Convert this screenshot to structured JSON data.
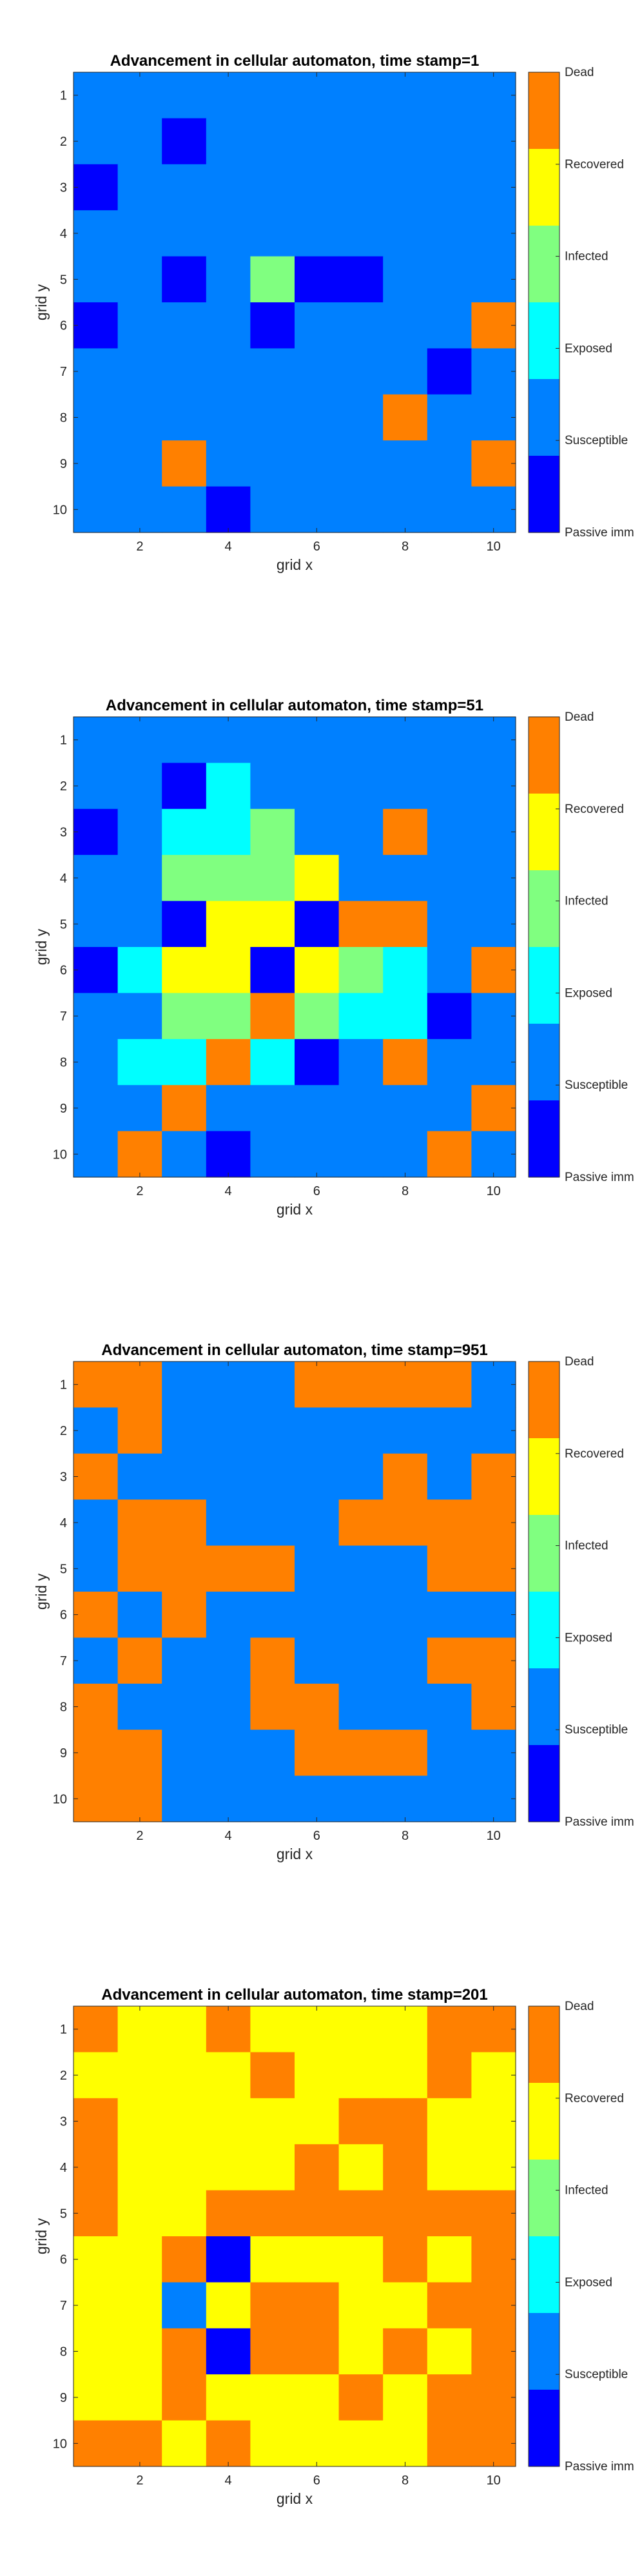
{
  "figure": {
    "background": "#ffffff"
  },
  "colormap": [
    {
      "state": "Passive immune",
      "color": "#0000FF"
    },
    {
      "state": "Susceptible",
      "color": "#0080FF"
    },
    {
      "state": "Exposed",
      "color": "#00FFFF"
    },
    {
      "state": "Infected",
      "color": "#80FF80"
    },
    {
      "state": "Recovered",
      "color": "#FFFF00"
    },
    {
      "state": "Dead",
      "color": "#FF8000"
    }
  ],
  "colorbar_labels": [
    "Passive imm",
    "Susceptible",
    "Exposed",
    "Infected",
    "Recovered",
    "Dead"
  ],
  "chart_data": [
    {
      "type": "heatmap",
      "title": "Advancement in cellular automaton, time stamp=1",
      "xlabel": "grid x",
      "ylabel": "grid y",
      "xticks": [
        2,
        4,
        6,
        8,
        10
      ],
      "yticks": [
        1,
        2,
        3,
        4,
        5,
        6,
        7,
        8,
        9,
        10
      ],
      "state_codes": {
        "0": "Passive immune",
        "1": "Susceptible",
        "2": "Exposed",
        "3": "Infected",
        "4": "Recovered",
        "5": "Dead"
      },
      "grid": [
        [
          1,
          1,
          1,
          1,
          1,
          1,
          1,
          1,
          1,
          1
        ],
        [
          1,
          1,
          0,
          1,
          1,
          1,
          1,
          1,
          1,
          1
        ],
        [
          0,
          1,
          1,
          1,
          1,
          1,
          1,
          1,
          1,
          1
        ],
        [
          1,
          1,
          1,
          1,
          1,
          1,
          1,
          1,
          1,
          1
        ],
        [
          1,
          1,
          0,
          1,
          3,
          0,
          0,
          1,
          1,
          1
        ],
        [
          0,
          1,
          1,
          1,
          0,
          1,
          1,
          1,
          1,
          5
        ],
        [
          1,
          1,
          1,
          1,
          1,
          1,
          1,
          1,
          0,
          1
        ],
        [
          1,
          1,
          1,
          1,
          1,
          1,
          1,
          5,
          1,
          1
        ],
        [
          1,
          1,
          5,
          1,
          1,
          1,
          1,
          1,
          1,
          5
        ],
        [
          1,
          1,
          1,
          0,
          1,
          1,
          1,
          1,
          1,
          1
        ]
      ]
    },
    {
      "type": "heatmap",
      "title": "Advancement in cellular automaton, time stamp=51",
      "xlabel": "grid x",
      "ylabel": "grid y",
      "xticks": [
        2,
        4,
        6,
        8,
        10
      ],
      "yticks": [
        1,
        2,
        3,
        4,
        5,
        6,
        7,
        8,
        9,
        10
      ],
      "state_codes": {
        "0": "Passive immune",
        "1": "Susceptible",
        "2": "Exposed",
        "3": "Infected",
        "4": "Recovered",
        "5": "Dead"
      },
      "grid": [
        [
          1,
          1,
          1,
          1,
          1,
          1,
          1,
          1,
          1,
          1
        ],
        [
          1,
          1,
          0,
          2,
          1,
          1,
          1,
          1,
          1,
          1
        ],
        [
          0,
          1,
          2,
          2,
          3,
          1,
          1,
          5,
          1,
          1
        ],
        [
          1,
          1,
          3,
          3,
          3,
          4,
          1,
          1,
          1,
          1
        ],
        [
          1,
          1,
          0,
          4,
          4,
          0,
          5,
          5,
          1,
          1
        ],
        [
          0,
          2,
          4,
          4,
          0,
          4,
          3,
          2,
          1,
          5
        ],
        [
          1,
          1,
          3,
          3,
          5,
          3,
          2,
          2,
          0,
          1
        ],
        [
          1,
          2,
          2,
          5,
          2,
          0,
          1,
          5,
          1,
          1
        ],
        [
          1,
          1,
          5,
          1,
          1,
          1,
          1,
          1,
          1,
          5
        ],
        [
          1,
          5,
          1,
          0,
          1,
          1,
          1,
          1,
          5,
          1
        ]
      ]
    },
    {
      "type": "heatmap",
      "title": "Advancement in cellular automaton, time stamp=951",
      "xlabel": "grid x",
      "ylabel": "grid y",
      "xticks": [
        2,
        4,
        6,
        8,
        10
      ],
      "yticks": [
        1,
        2,
        3,
        4,
        5,
        6,
        7,
        8,
        9,
        10
      ],
      "state_codes": {
        "0": "Passive immune",
        "1": "Susceptible",
        "2": "Exposed",
        "3": "Infected",
        "4": "Recovered",
        "5": "Dead"
      },
      "grid": [
        [
          5,
          5,
          1,
          1,
          1,
          5,
          5,
          5,
          5,
          1
        ],
        [
          1,
          5,
          1,
          1,
          1,
          1,
          1,
          1,
          1,
          1
        ],
        [
          5,
          1,
          1,
          1,
          1,
          1,
          1,
          5,
          1,
          5
        ],
        [
          1,
          5,
          5,
          1,
          1,
          1,
          5,
          5,
          5,
          5
        ],
        [
          1,
          5,
          5,
          5,
          5,
          1,
          1,
          1,
          5,
          5
        ],
        [
          5,
          1,
          5,
          1,
          1,
          1,
          1,
          1,
          1,
          1
        ],
        [
          1,
          5,
          1,
          1,
          5,
          1,
          1,
          1,
          5,
          5
        ],
        [
          5,
          1,
          1,
          1,
          5,
          5,
          1,
          1,
          1,
          5
        ],
        [
          5,
          5,
          1,
          1,
          1,
          5,
          5,
          5,
          1,
          1
        ],
        [
          5,
          5,
          1,
          1,
          1,
          1,
          1,
          1,
          1,
          1
        ]
      ]
    },
    {
      "type": "heatmap",
      "title": "Advancement in cellular automaton, time stamp=201",
      "xlabel": "grid x",
      "ylabel": "grid y",
      "xticks": [
        2,
        4,
        6,
        8,
        10
      ],
      "yticks": [
        1,
        2,
        3,
        4,
        5,
        6,
        7,
        8,
        9,
        10
      ],
      "state_codes": {
        "0": "Passive immune",
        "1": "Susceptible",
        "2": "Exposed",
        "3": "Infected",
        "4": "Recovered",
        "5": "Dead"
      },
      "grid": [
        [
          5,
          4,
          4,
          5,
          4,
          4,
          4,
          4,
          5,
          5
        ],
        [
          4,
          4,
          4,
          4,
          5,
          4,
          4,
          4,
          5,
          4
        ],
        [
          5,
          4,
          4,
          4,
          4,
          4,
          5,
          5,
          4,
          4
        ],
        [
          5,
          4,
          4,
          4,
          4,
          5,
          4,
          5,
          4,
          4
        ],
        [
          5,
          4,
          4,
          5,
          5,
          5,
          5,
          5,
          5,
          5
        ],
        [
          4,
          4,
          5,
          0,
          4,
          4,
          4,
          5,
          4,
          5
        ],
        [
          4,
          4,
          1,
          4,
          5,
          5,
          4,
          4,
          5,
          5
        ],
        [
          4,
          4,
          5,
          0,
          5,
          5,
          4,
          5,
          4,
          5
        ],
        [
          4,
          4,
          5,
          4,
          4,
          4,
          5,
          4,
          5,
          5
        ],
        [
          5,
          5,
          4,
          5,
          4,
          4,
          4,
          4,
          5,
          5
        ]
      ]
    }
  ]
}
